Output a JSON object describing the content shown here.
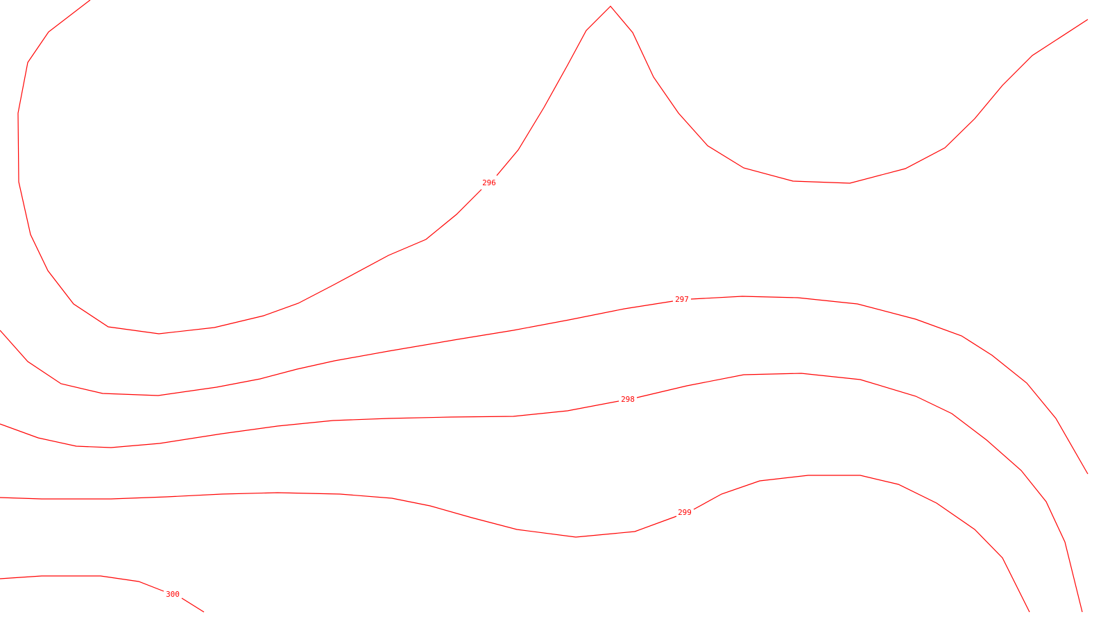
{
  "map": {
    "contour_color": "#ff0000",
    "background_color": "#ffffff",
    "contour_levels": [
      {
        "id": "296",
        "label": "296"
      },
      {
        "id": "297",
        "label": "297"
      },
      {
        "id": "298",
        "label": "298"
      },
      {
        "id": "299",
        "label": "299"
      },
      {
        "id": "300",
        "label": "300"
      }
    ]
  }
}
